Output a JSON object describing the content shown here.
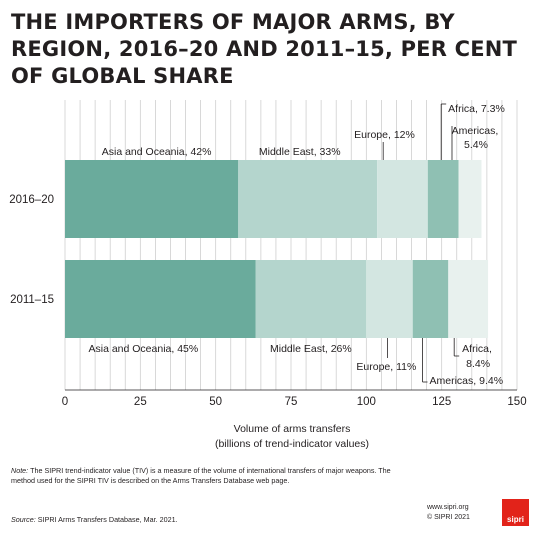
{
  "title_lines": [
    "THE IMPORTERS OF MAJOR ARMS, BY",
    "REGION, 2016–20 AND 2011–15, PER CENT",
    "OF GLOBAL SHARE"
  ],
  "chart_data": {
    "type": "bar",
    "orientation": "horizontal",
    "stacked": true,
    "categories": [
      "2016–20",
      "2011–15"
    ],
    "segments": [
      "Asia and Oceania",
      "Middle East",
      "Europe",
      "Africa",
      "Americas"
    ],
    "values": [
      [
        57.5,
        46.1,
        16.8,
        10.2,
        7.6
      ],
      [
        63.3,
        36.6,
        15.5,
        11.8,
        13.2
      ]
    ],
    "segment_labels": [
      [
        "Asia and Oceania, 42%",
        "Middle East, 33%",
        "Europe, 12%",
        "Africa, 7.3%",
        "Americas, 5.4%"
      ],
      [
        "Asia and Oceania, 45%",
        "Middle East, 26%",
        "Europe, 11%",
        "Africa, 8.4%",
        "Americas, 9.4%"
      ]
    ],
    "colors": [
      "#6aab9c",
      "#b4d5cd",
      "#d3e6e1",
      "#8fc0b3",
      "#e8f1ee"
    ],
    "xlabel": "Volume of arms transfers",
    "xlabel2": "(billions of trend-indicator values)",
    "xlim": [
      0,
      150
    ],
    "xticks": [
      "0",
      "25",
      "50",
      "75",
      "100",
      "125",
      "150"
    ],
    "grid": true
  },
  "note_label": "Note:",
  "note_text": "The SIPRI trend-indicator value (TIV) is a measure of the volume of international transfers of major weapons. The method used for the SIPRI TIV is described on the Arms Transfers Database web page.",
  "source_label": "Source:",
  "source_text": "SIPRI Arms Transfers Database, Mar. 2021.",
  "website": "www.sipri.org",
  "copyright": "© SIPRI 2021",
  "logo_text": "sipri"
}
